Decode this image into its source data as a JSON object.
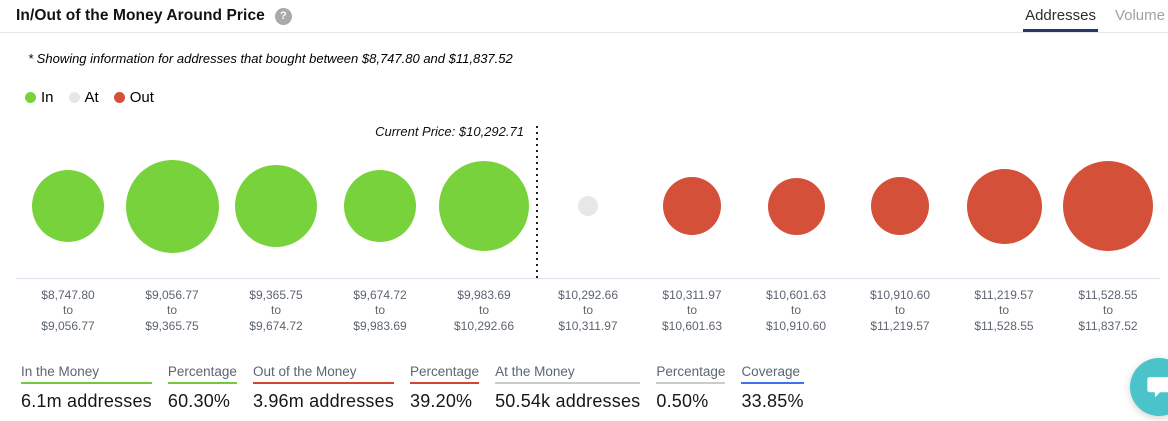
{
  "header": {
    "title": "In/Out of the Money Around Price",
    "help_glyph": "?",
    "tabs": [
      {
        "label": "Addresses",
        "active": true
      },
      {
        "label": "Volume",
        "active": false
      }
    ]
  },
  "subtitle": "* Showing information for addresses that bought between $8,747.80 and $11,837.52",
  "legend": [
    {
      "label": "In",
      "color": "#78d23c"
    },
    {
      "label": "At",
      "color": "#e7e7e7"
    },
    {
      "label": "Out",
      "color": "#d45038"
    }
  ],
  "chart_data": {
    "type": "bubble",
    "title": "In/Out of the Money Around Price",
    "current_price_label": "Current Price: $10,292.71",
    "current_price": 10292.71,
    "to_label": "to",
    "colors": {
      "in": "#78d23c",
      "at": "#e7e7e7",
      "out": "#d45038"
    },
    "divider_after_bucket_index": 4,
    "buckets": [
      {
        "from": "$8,747.80",
        "to": "$9,056.77",
        "status": "in",
        "diameter": 72
      },
      {
        "from": "$9,056.77",
        "to": "$9,365.75",
        "status": "in",
        "diameter": 93
      },
      {
        "from": "$9,365.75",
        "to": "$9,674.72",
        "status": "in",
        "diameter": 82
      },
      {
        "from": "$9,674.72",
        "to": "$9,983.69",
        "status": "in",
        "diameter": 72
      },
      {
        "from": "$9,983.69",
        "to": "$10,292.66",
        "status": "in",
        "diameter": 90
      },
      {
        "from": "$10,292.66",
        "to": "$10,311.97",
        "status": "at",
        "diameter": 20
      },
      {
        "from": "$10,311.97",
        "to": "$10,601.63",
        "status": "out",
        "diameter": 58
      },
      {
        "from": "$10,601.63",
        "to": "$10,910.60",
        "status": "out",
        "diameter": 57
      },
      {
        "from": "$10,910.60",
        "to": "$11,219.57",
        "status": "out",
        "diameter": 58
      },
      {
        "from": "$11,219.57",
        "to": "$11,528.55",
        "status": "out",
        "diameter": 75
      },
      {
        "from": "$11,528.55",
        "to": "$11,837.52",
        "status": "out",
        "diameter": 90
      }
    ],
    "legend_position": "top-left",
    "grid": false
  },
  "stats": [
    {
      "label": "In the Money",
      "value": "6.1m addresses",
      "underline": "#72c940"
    },
    {
      "label": "Percentage",
      "value": "60.30%",
      "underline": "#72c940"
    },
    {
      "label": "Out of the Money",
      "value": "3.96m addresses",
      "underline": "#cf4730"
    },
    {
      "label": "Percentage",
      "value": "39.20%",
      "underline": "#cf4730"
    },
    {
      "label": "At the Money",
      "value": "50.54k addresses",
      "underline": "#cbcbcb"
    },
    {
      "label": "Percentage",
      "value": "0.50%",
      "underline": "#cbcbcb"
    },
    {
      "label": "Coverage",
      "value": "33.85%",
      "underline": "#3d72e8"
    }
  ],
  "chat_widget": {
    "color": "#4ac3ca",
    "icon": "chat-bubble"
  }
}
